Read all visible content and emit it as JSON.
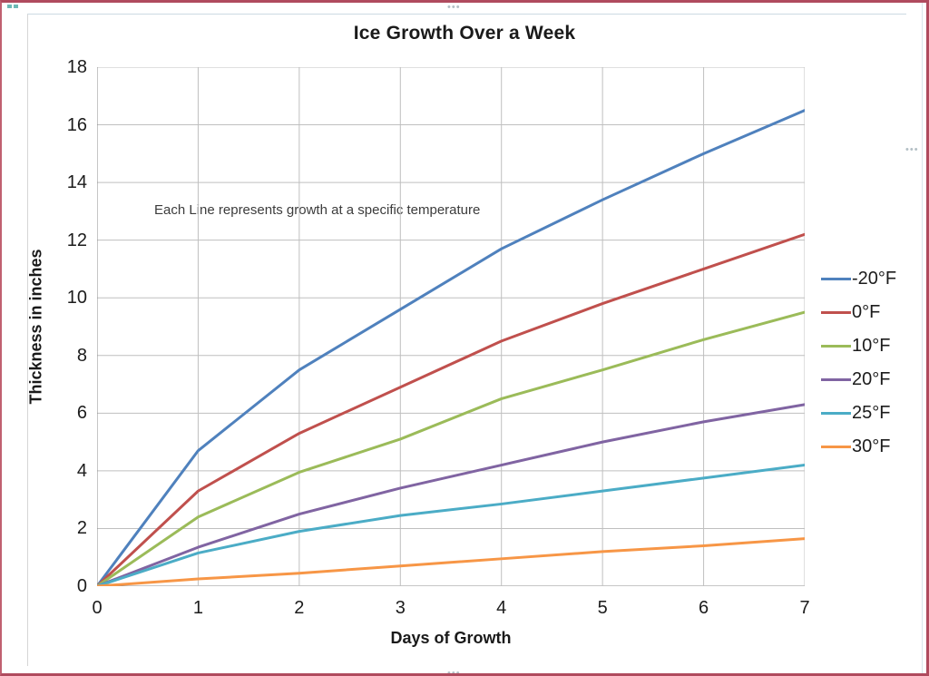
{
  "chart_data": {
    "type": "line",
    "title": "Ice Growth Over a Week",
    "xlabel": "Days of Growth",
    "ylabel": "Thickness in inches",
    "annotation": "Each Line represents growth at a specific temperature",
    "x": [
      0,
      1,
      2,
      3,
      4,
      5,
      6,
      7
    ],
    "xticks": [
      "0",
      "1",
      "2",
      "3",
      "4",
      "5",
      "6",
      "7"
    ],
    "yticks": [
      "0",
      "2",
      "4",
      "6",
      "8",
      "10",
      "12",
      "14",
      "16",
      "18"
    ],
    "xlim": [
      0,
      7
    ],
    "ylim": [
      0,
      18
    ],
    "grid": true,
    "legend_position": "right",
    "grid_color": "#bfbfbf",
    "axis_color": "#8c8c8c",
    "text_color": "#1c1c1c",
    "series": [
      {
        "name": "-20°F",
        "color": "#4F81BD",
        "values": [
          0,
          4.7,
          7.5,
          9.6,
          11.7,
          13.4,
          15.0,
          16.5
        ]
      },
      {
        "name": "0°F",
        "color": "#C0504D",
        "values": [
          0,
          3.3,
          5.3,
          6.9,
          8.5,
          9.8,
          11.0,
          12.2
        ]
      },
      {
        "name": "10°F",
        "color": "#9BBB59",
        "values": [
          0,
          2.4,
          3.95,
          5.1,
          6.5,
          7.5,
          8.55,
          9.5
        ]
      },
      {
        "name": "20°F",
        "color": "#8064A2",
        "values": [
          0,
          1.35,
          2.5,
          3.4,
          4.2,
          5.0,
          5.7,
          6.3
        ]
      },
      {
        "name": "25°F",
        "color": "#4BACC6",
        "values": [
          0,
          1.15,
          1.9,
          2.45,
          2.85,
          3.3,
          3.75,
          4.2
        ]
      },
      {
        "name": "30°F",
        "color": "#F79646",
        "values": [
          0,
          0.25,
          0.45,
          0.7,
          0.95,
          1.2,
          1.4,
          1.65
        ]
      }
    ]
  }
}
